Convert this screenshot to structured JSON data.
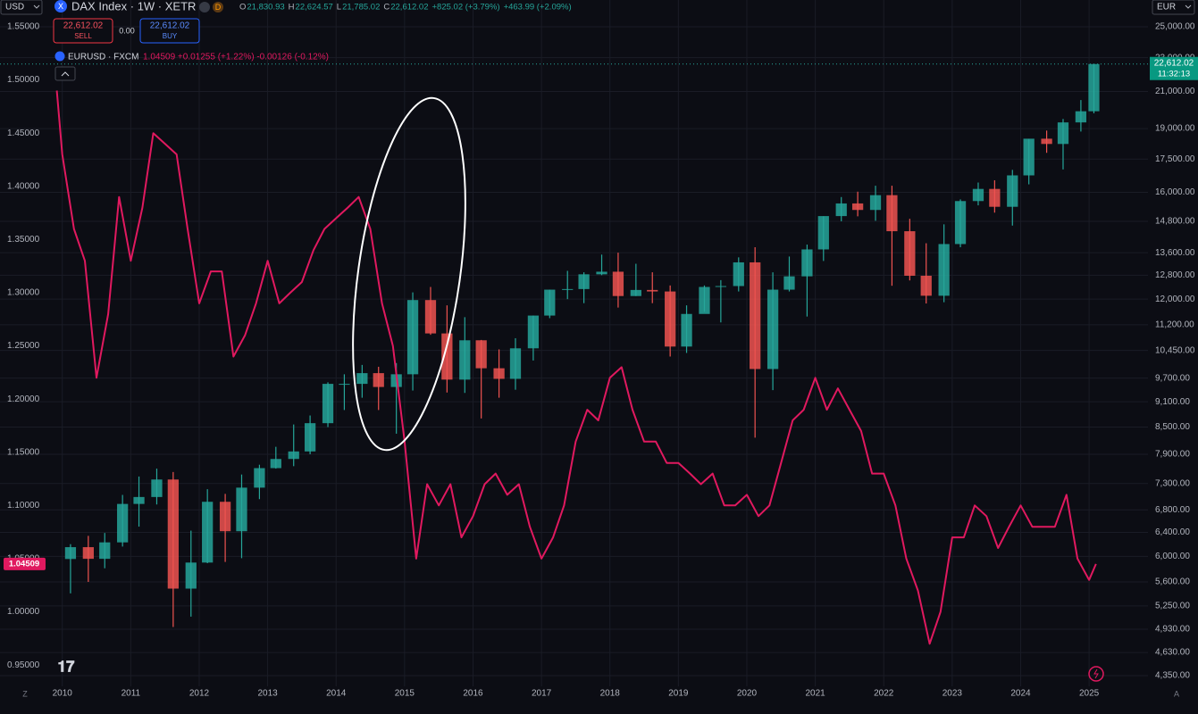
{
  "toolbar": {
    "currency_left": "USD",
    "symbol_icon": "X",
    "symbol": "DAX Index · 1W · XETR",
    "market_badge": "D",
    "ohlc": [
      {
        "label": "O",
        "value": "21,830.93"
      },
      {
        "label": "H",
        "value": "22,624.57"
      },
      {
        "label": "L",
        "value": "21,785.02"
      },
      {
        "label": "C",
        "value": "22,612.02"
      }
    ],
    "change": "+825.02 (+3.79%)",
    "change2": "+463.99 (+2.09%)",
    "sell_price": "22,612.02",
    "sell": "SELL",
    "spread": "0.00",
    "buy_price": "22,612.02",
    "buy": "BUY",
    "overlay_symbol": "EURUSD · FXCM",
    "overlay_values": "1.04509 +0.01255 (+1.22%) -0.00126 (-0.12%)",
    "currency_right": "EUR",
    "left_price_label": "1.04509",
    "right_price_label": "22,612.02",
    "countdown": "11:32:13",
    "corner_left": "Z",
    "corner_right": "A"
  },
  "chart_data": [
    {
      "type": "candlestick",
      "name": "DAX Index",
      "up_color": "#26a69a",
      "down_color": "#ef5350",
      "log_scale": true,
      "grid": true,
      "xlim": [
        2009.09,
        2025.86
      ],
      "xticks": [
        2010,
        2011,
        2012,
        2013,
        2014,
        2015,
        2016,
        2017,
        2018,
        2019,
        2020,
        2021,
        2022,
        2023,
        2024,
        2025
      ],
      "ylim": [
        4288,
        25000
      ],
      "yticks": [
        {
          "value": 25000,
          "label": "25,000.00"
        },
        {
          "value": 23000,
          "label": "23,000.00"
        },
        {
          "value": 21000,
          "label": "21,000.00"
        },
        {
          "value": 19000,
          "label": "19,000.00"
        },
        {
          "value": 17500,
          "label": "17,500.00"
        },
        {
          "value": 16000,
          "label": "16,000.00"
        },
        {
          "value": 14800,
          "label": "14,800.00"
        },
        {
          "value": 13600,
          "label": "13,600.00"
        },
        {
          "value": 12800,
          "label": "12,800.00"
        },
        {
          "value": 12000,
          "label": "12,000.00"
        },
        {
          "value": 11200,
          "label": "11,200.00"
        },
        {
          "value": 10450,
          "label": "10,450.00"
        },
        {
          "value": 9700,
          "label": "9,700.00"
        },
        {
          "value": 9100,
          "label": "9,100.00"
        },
        {
          "value": 8500,
          "label": "8,500.00"
        },
        {
          "value": 7900,
          "label": "7,900.00"
        },
        {
          "value": 7300,
          "label": "7,300.00"
        },
        {
          "value": 6800,
          "label": "6,800.00"
        },
        {
          "value": 6400,
          "label": "6,400.00"
        },
        {
          "value": 6000,
          "label": "6,000.00"
        },
        {
          "value": 5600,
          "label": "5,600.00"
        },
        {
          "value": 5250,
          "label": "5,250.00"
        },
        {
          "value": 4930,
          "label": "4,930.00"
        },
        {
          "value": 4630,
          "label": "4,630.00"
        },
        {
          "value": 4350,
          "label": "4,350.00"
        }
      ],
      "x": [
        2010.12,
        2010.38,
        2010.62,
        2010.88,
        2011.12,
        2011.38,
        2011.62,
        2011.88,
        2012.12,
        2012.38,
        2012.62,
        2012.88,
        2013.12,
        2013.38,
        2013.62,
        2013.88,
        2014.12,
        2014.38,
        2014.62,
        2014.88,
        2015.12,
        2015.38,
        2015.62,
        2015.88,
        2016.12,
        2016.38,
        2016.62,
        2016.88,
        2017.12,
        2017.38,
        2017.62,
        2017.88,
        2018.12,
        2018.38,
        2018.62,
        2018.88,
        2019.12,
        2019.38,
        2019.62,
        2019.88,
        2020.12,
        2020.38,
        2020.62,
        2020.88,
        2021.12,
        2021.38,
        2021.62,
        2021.88,
        2022.12,
        2022.38,
        2022.62,
        2022.88,
        2023.12,
        2023.38,
        2023.62,
        2023.88,
        2024.12,
        2024.38,
        2024.62,
        2024.88,
        2025.07
      ],
      "open": [
        5957,
        6150,
        5960,
        6230,
        6910,
        7040,
        7380,
        5500,
        5900,
        6950,
        6420,
        7220,
        7610,
        7800,
        7960,
        8590,
        9550,
        9550,
        9830,
        9470,
        9800,
        11970,
        10940,
        9660,
        10740,
        9960,
        9680,
        10510,
        11480,
        12310,
        12330,
        12830,
        12920,
        12100,
        12300,
        12250,
        10560,
        11530,
        12400,
        12430,
        13250,
        9940,
        12310,
        12760,
        13720,
        15010,
        15530,
        15260,
        15880,
        14410,
        12780,
        12110,
        13920,
        15630,
        16150,
        15390,
        16750,
        18490,
        18230,
        19320,
        19910
      ],
      "high": [
        6200,
        6340,
        6390,
        7080,
        7440,
        7600,
        7530,
        6430,
        7190,
        7100,
        7480,
        7680,
        8060,
        8560,
        8770,
        9590,
        9800,
        10050,
        10000,
        10100,
        12220,
        12400,
        11800,
        11430,
        10750,
        10480,
        10800,
        11480,
        12310,
        12950,
        12900,
        13530,
        13600,
        13200,
        12900,
        12450,
        11800,
        12450,
        12630,
        13430,
        13800,
        12900,
        13460,
        13900,
        15000,
        15800,
        16030,
        16290,
        16290,
        14900,
        13950,
        14680,
        15700,
        16430,
        16530,
        17000,
        18480,
        18900,
        19500,
        20520,
        22624.57
      ],
      "low": [
        5430,
        5600,
        5810,
        6160,
        6500,
        6900,
        4960,
        5100,
        5890,
        5910,
        5970,
        7000,
        7600,
        7650,
        7900,
        8500,
        8900,
        9200,
        8900,
        8350,
        9380,
        10900,
        9330,
        9320,
        8700,
        9200,
        9400,
        10170,
        11400,
        12000,
        11870,
        12800,
        11730,
        12100,
        11870,
        10280,
        10380,
        11600,
        11270,
        12250,
        8260,
        9390,
        12250,
        11450,
        13300,
        14800,
        15000,
        14820,
        12440,
        12620,
        11860,
        11900,
        13800,
        15450,
        15150,
        14630,
        16350,
        17800,
        17020,
        18850,
        19800
      ],
      "close": [
        6150,
        5960,
        6230,
        6910,
        7040,
        7380,
        5500,
        5900,
        6950,
        6420,
        7220,
        7610,
        7800,
        7960,
        8590,
        9550,
        9550,
        9830,
        9470,
        9800,
        11970,
        10940,
        9660,
        10740,
        9960,
        9680,
        10510,
        11480,
        12310,
        12330,
        12830,
        12920,
        12100,
        12300,
        12250,
        10560,
        11530,
        12400,
        12430,
        13250,
        9940,
        12310,
        12760,
        13720,
        15010,
        15530,
        15260,
        15880,
        14410,
        12780,
        12110,
        13920,
        15630,
        16150,
        15390,
        16750,
        18490,
        18230,
        19320,
        19910,
        22612.02
      ]
    },
    {
      "type": "line",
      "name": "EURUSD",
      "color": "#e0195f",
      "inverted": true,
      "ylim": [
        0.935,
        1.55
      ],
      "yticks": [
        {
          "value": 0.95,
          "label": "0.95000"
        },
        {
          "value": 1.0,
          "label": "1.00000"
        },
        {
          "value": 1.05,
          "label": "1.05000"
        },
        {
          "value": 1.1,
          "label": "1.10000"
        },
        {
          "value": 1.15,
          "label": "1.15000"
        },
        {
          "value": 1.2,
          "label": "1.20000"
        },
        {
          "value": 1.25,
          "label": "1.25000"
        },
        {
          "value": 1.3,
          "label": "1.30000"
        },
        {
          "value": 1.35,
          "label": "1.35000"
        },
        {
          "value": 1.4,
          "label": "1.40000"
        },
        {
          "value": 1.45,
          "label": "1.45000"
        },
        {
          "value": 1.5,
          "label": "1.50000"
        },
        {
          "value": 1.55,
          "label": "1.55000"
        }
      ],
      "x": [
        2009.92,
        2010,
        2010.17,
        2010.33,
        2010.5,
        2010.67,
        2010.83,
        2011,
        2011.17,
        2011.33,
        2011.5,
        2011.67,
        2011.83,
        2012,
        2012.17,
        2012.33,
        2012.5,
        2012.67,
        2012.83,
        2013,
        2013.17,
        2013.33,
        2013.5,
        2013.67,
        2013.83,
        2014,
        2014.17,
        2014.33,
        2014.5,
        2014.67,
        2014.83,
        2015,
        2015.17,
        2015.33,
        2015.5,
        2015.67,
        2015.83,
        2016,
        2016.17,
        2016.33,
        2016.5,
        2016.67,
        2016.83,
        2017,
        2017.17,
        2017.33,
        2017.5,
        2017.67,
        2017.83,
        2018,
        2018.17,
        2018.33,
        2018.5,
        2018.67,
        2018.83,
        2019,
        2019.17,
        2019.33,
        2019.5,
        2019.67,
        2019.83,
        2020,
        2020.17,
        2020.33,
        2020.5,
        2020.67,
        2020.83,
        2021,
        2021.17,
        2021.33,
        2021.5,
        2021.67,
        2021.83,
        2022,
        2022.17,
        2022.33,
        2022.5,
        2022.67,
        2022.83,
        2023,
        2023.17,
        2023.33,
        2023.5,
        2023.67,
        2023.83,
        2024,
        2024.17,
        2024.33,
        2024.5,
        2024.67,
        2024.83,
        2025,
        2025.1
      ],
      "values": [
        1.49,
        1.43,
        1.36,
        1.33,
        1.22,
        1.28,
        1.39,
        1.33,
        1.38,
        1.45,
        1.44,
        1.43,
        1.36,
        1.29,
        1.32,
        1.32,
        1.24,
        1.26,
        1.29,
        1.33,
        1.29,
        1.3,
        1.31,
        1.34,
        1.36,
        1.37,
        1.38,
        1.39,
        1.36,
        1.29,
        1.25,
        1.16,
        1.05,
        1.12,
        1.1,
        1.12,
        1.07,
        1.09,
        1.12,
        1.13,
        1.11,
        1.12,
        1.08,
        1.05,
        1.07,
        1.1,
        1.16,
        1.19,
        1.18,
        1.22,
        1.23,
        1.19,
        1.16,
        1.16,
        1.14,
        1.14,
        1.13,
        1.12,
        1.13,
        1.1,
        1.1,
        1.11,
        1.09,
        1.1,
        1.14,
        1.18,
        1.19,
        1.22,
        1.19,
        1.21,
        1.19,
        1.17,
        1.13,
        1.13,
        1.1,
        1.05,
        1.02,
        0.97,
        1.0,
        1.07,
        1.07,
        1.1,
        1.09,
        1.06,
        1.08,
        1.1,
        1.08,
        1.08,
        1.08,
        1.11,
        1.05,
        1.03,
        1.045
      ]
    }
  ]
}
